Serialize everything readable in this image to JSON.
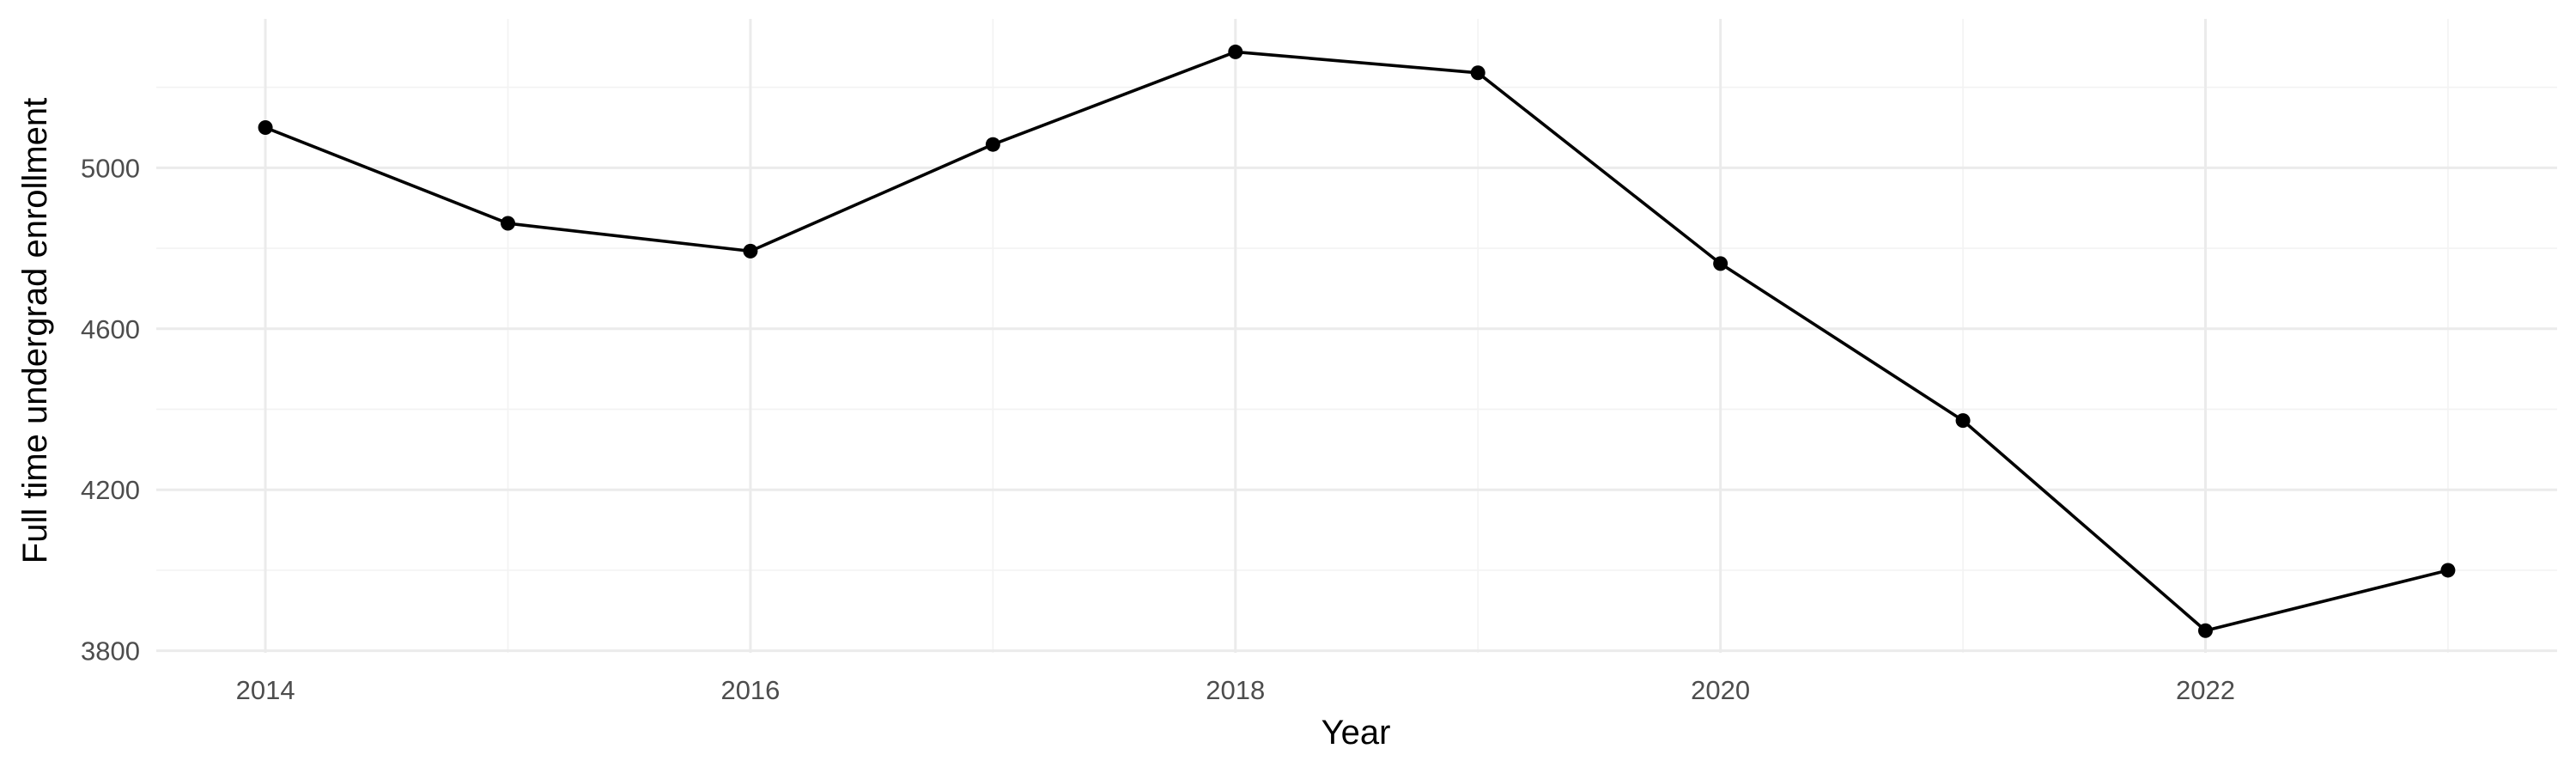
{
  "chart_data": {
    "type": "line",
    "title": "",
    "xlabel": "Year",
    "ylabel": "Full time undergrad enrollment",
    "x": [
      2014,
      2015,
      2016,
      2017,
      2018,
      2019,
      2020,
      2021,
      2022,
      2023
    ],
    "series": [
      {
        "values": [
          5100,
          4862,
          4793,
          5058,
          5288,
          5236,
          4762,
          4372,
          3850,
          4000
        ],
        "color": "#000000"
      }
    ],
    "xlim": [
      2013.55,
      2023.45
    ],
    "ylim": [
      3795,
      5370
    ],
    "x_major_ticks": [
      2014,
      2016,
      2018,
      2020,
      2022
    ],
    "x_tick_labels": [
      "2014",
      "2016",
      "2018",
      "2020",
      "2022"
    ],
    "x_minor_ticks": [
      2015,
      2017,
      2019,
      2021,
      2023
    ],
    "y_major_ticks": [
      3800,
      4200,
      4600,
      5000
    ],
    "y_tick_labels": [
      "3800",
      "4200",
      "4600",
      "5000"
    ],
    "y_minor_ticks": [
      4000,
      4400,
      4800,
      5200
    ],
    "grid": true,
    "legend": "none",
    "background": "#ffffff",
    "gridline_color": "#ebebeb",
    "text_color": "#4d4d4d"
  }
}
